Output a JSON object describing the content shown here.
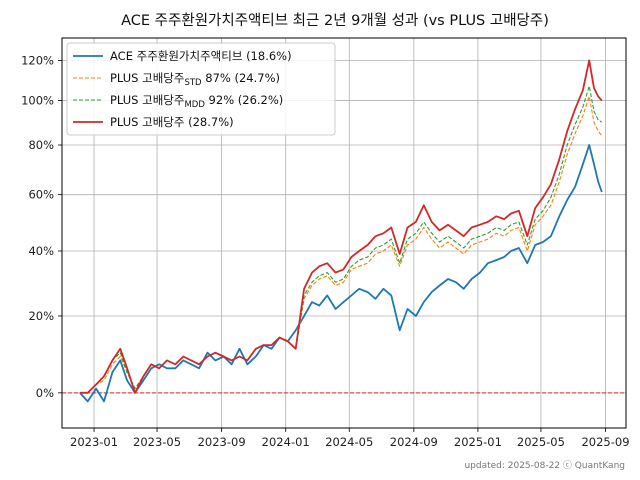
{
  "chart_data": {
    "type": "line",
    "title": "ACE 주주환원가치주액티브 최근 2년 9개월 성과 (vs PLUS 고배당주)",
    "xlabel": "",
    "ylabel": "",
    "y_scale": "log(1+return)",
    "ylim": [
      -8,
      132
    ],
    "xlim": [
      "2022-11-01",
      "2025-10-10"
    ],
    "grid": true,
    "legend_position": "top-left",
    "reference_line": {
      "value": 0,
      "style": "dashed",
      "color": "#d62728"
    },
    "x_ticks": [
      "2023-01",
      "2023-05",
      "2023-09",
      "2024-01",
      "2024-05",
      "2024-09",
      "2025-01",
      "2025-05",
      "2025-09"
    ],
    "y_ticks": [
      "0%",
      "20%",
      "40%",
      "60%",
      "80%",
      "100%",
      "120%"
    ],
    "y_tick_values": [
      0,
      20,
      40,
      60,
      80,
      100,
      120
    ],
    "series": [
      {
        "name": "ACE 주주환원가치주액티브 (18.6%)",
        "name_main": "ACE 주주환원가치주액티브 (18.6%)",
        "name_sub": "",
        "name_tail": "",
        "color": "#1f77b4",
        "style": "solid",
        "points": [
          [
            "2022-12-05",
            0
          ],
          [
            "2022-12-20",
            -2
          ],
          [
            "2023-01-05",
            1
          ],
          [
            "2023-01-20",
            -2
          ],
          [
            "2023-02-05",
            5
          ],
          [
            "2023-02-20",
            8
          ],
          [
            "2023-03-05",
            3
          ],
          [
            "2023-03-20",
            0
          ],
          [
            "2023-04-05",
            3
          ],
          [
            "2023-04-20",
            6
          ],
          [
            "2023-05-05",
            7
          ],
          [
            "2023-05-20",
            6
          ],
          [
            "2023-06-05",
            6
          ],
          [
            "2023-06-20",
            8
          ],
          [
            "2023-07-05",
            7
          ],
          [
            "2023-07-20",
            6
          ],
          [
            "2023-08-05",
            10
          ],
          [
            "2023-08-20",
            8
          ],
          [
            "2023-09-05",
            9
          ],
          [
            "2023-09-20",
            7
          ],
          [
            "2023-10-05",
            11
          ],
          [
            "2023-10-20",
            7
          ],
          [
            "2023-11-05",
            9
          ],
          [
            "2023-11-20",
            12
          ],
          [
            "2023-12-05",
            11
          ],
          [
            "2023-12-20",
            14
          ],
          [
            "2024-01-05",
            13
          ],
          [
            "2024-01-20",
            16
          ],
          [
            "2024-02-05",
            20
          ],
          [
            "2024-02-20",
            24
          ],
          [
            "2024-03-05",
            23
          ],
          [
            "2024-03-20",
            26
          ],
          [
            "2024-04-05",
            22
          ],
          [
            "2024-04-20",
            24
          ],
          [
            "2024-05-05",
            26
          ],
          [
            "2024-05-20",
            28
          ],
          [
            "2024-06-05",
            27
          ],
          [
            "2024-06-20",
            25
          ],
          [
            "2024-07-05",
            28
          ],
          [
            "2024-07-20",
            26
          ],
          [
            "2024-08-05",
            16
          ],
          [
            "2024-08-20",
            22
          ],
          [
            "2024-09-05",
            20
          ],
          [
            "2024-09-20",
            24
          ],
          [
            "2024-10-05",
            27
          ],
          [
            "2024-10-20",
            29
          ],
          [
            "2024-11-05",
            31
          ],
          [
            "2024-11-20",
            30
          ],
          [
            "2024-12-05",
            28
          ],
          [
            "2024-12-20",
            31
          ],
          [
            "2025-01-05",
            33
          ],
          [
            "2025-01-20",
            36
          ],
          [
            "2025-02-05",
            37
          ],
          [
            "2025-02-20",
            38
          ],
          [
            "2025-03-05",
            40
          ],
          [
            "2025-03-20",
            41
          ],
          [
            "2025-04-05",
            36
          ],
          [
            "2025-04-20",
            42
          ],
          [
            "2025-05-05",
            43
          ],
          [
            "2025-05-20",
            45
          ],
          [
            "2025-06-05",
            52
          ],
          [
            "2025-06-20",
            58
          ],
          [
            "2025-07-05",
            63
          ],
          [
            "2025-07-20",
            72
          ],
          [
            "2025-08-01",
            80
          ],
          [
            "2025-08-10",
            72
          ],
          [
            "2025-08-18",
            65
          ],
          [
            "2025-08-25",
            61
          ]
        ]
      },
      {
        "name": "PLUS 고배당주STD 87% (24.7%)",
        "name_main": "PLUS 고배당주",
        "name_sub": "STD",
        "name_tail": " 87% (24.7%)",
        "color": "#ff7f0e",
        "style": "dashed",
        "points": [
          [
            "2022-12-05",
            0
          ],
          [
            "2022-12-20",
            0
          ],
          [
            "2023-01-05",
            2
          ],
          [
            "2023-01-20",
            3
          ],
          [
            "2023-02-05",
            7
          ],
          [
            "2023-02-20",
            9
          ],
          [
            "2023-03-05",
            5
          ],
          [
            "2023-03-20",
            1
          ],
          [
            "2023-04-05",
            4
          ],
          [
            "2023-04-20",
            7
          ],
          [
            "2023-05-05",
            6
          ],
          [
            "2023-05-20",
            8
          ],
          [
            "2023-06-05",
            7
          ],
          [
            "2023-06-20",
            9
          ],
          [
            "2023-07-05",
            8
          ],
          [
            "2023-07-20",
            7
          ],
          [
            "2023-08-05",
            9
          ],
          [
            "2023-08-20",
            10
          ],
          [
            "2023-09-05",
            9
          ],
          [
            "2023-09-20",
            8
          ],
          [
            "2023-10-05",
            9
          ],
          [
            "2023-10-20",
            8
          ],
          [
            "2023-11-05",
            11
          ],
          [
            "2023-11-20",
            12
          ],
          [
            "2023-12-05",
            12
          ],
          [
            "2023-12-20",
            14
          ],
          [
            "2024-01-05",
            13
          ],
          [
            "2024-01-20",
            11
          ],
          [
            "2024-02-05",
            25
          ],
          [
            "2024-02-20",
            29
          ],
          [
            "2024-03-05",
            31
          ],
          [
            "2024-03-20",
            32
          ],
          [
            "2024-04-05",
            29
          ],
          [
            "2024-04-20",
            30
          ],
          [
            "2024-05-05",
            34
          ],
          [
            "2024-05-20",
            35
          ],
          [
            "2024-06-05",
            36
          ],
          [
            "2024-06-20",
            39
          ],
          [
            "2024-07-05",
            40
          ],
          [
            "2024-07-20",
            42
          ],
          [
            "2024-08-05",
            35
          ],
          [
            "2024-08-20",
            42
          ],
          [
            "2024-09-05",
            44
          ],
          [
            "2024-09-20",
            48
          ],
          [
            "2024-10-05",
            44
          ],
          [
            "2024-10-20",
            41
          ],
          [
            "2024-11-05",
            43
          ],
          [
            "2024-11-20",
            41
          ],
          [
            "2024-12-05",
            39
          ],
          [
            "2024-12-20",
            42
          ],
          [
            "2025-01-05",
            43
          ],
          [
            "2025-01-20",
            44
          ],
          [
            "2025-02-05",
            46
          ],
          [
            "2025-02-20",
            45
          ],
          [
            "2025-03-05",
            47
          ],
          [
            "2025-03-20",
            48
          ],
          [
            "2025-04-05",
            40
          ],
          [
            "2025-04-20",
            49
          ],
          [
            "2025-05-05",
            52
          ],
          [
            "2025-05-20",
            56
          ],
          [
            "2025-06-05",
            65
          ],
          [
            "2025-06-20",
            76
          ],
          [
            "2025-07-05",
            85
          ],
          [
            "2025-07-20",
            93
          ],
          [
            "2025-08-01",
            102
          ],
          [
            "2025-08-10",
            90
          ],
          [
            "2025-08-18",
            86
          ],
          [
            "2025-08-25",
            84
          ]
        ]
      },
      {
        "name": "PLUS 고배당주MDD 92% (26.2%)",
        "name_main": "PLUS 고배당주",
        "name_sub": "MDD",
        "name_tail": " 92% (26.2%)",
        "color": "#2ca02c",
        "style": "dashed",
        "points": [
          [
            "2022-12-05",
            0
          ],
          [
            "2022-12-20",
            0
          ],
          [
            "2023-01-05",
            2
          ],
          [
            "2023-01-20",
            4
          ],
          [
            "2023-02-05",
            8
          ],
          [
            "2023-02-20",
            10
          ],
          [
            "2023-03-05",
            5
          ],
          [
            "2023-03-20",
            1
          ],
          [
            "2023-04-05",
            4
          ],
          [
            "2023-04-20",
            7
          ],
          [
            "2023-05-05",
            6
          ],
          [
            "2023-05-20",
            8
          ],
          [
            "2023-06-05",
            7
          ],
          [
            "2023-06-20",
            9
          ],
          [
            "2023-07-05",
            8
          ],
          [
            "2023-07-20",
            7
          ],
          [
            "2023-08-05",
            9
          ],
          [
            "2023-08-20",
            10
          ],
          [
            "2023-09-05",
            9
          ],
          [
            "2023-09-20",
            8
          ],
          [
            "2023-10-05",
            9
          ],
          [
            "2023-10-20",
            8
          ],
          [
            "2023-11-05",
            11
          ],
          [
            "2023-11-20",
            12
          ],
          [
            "2023-12-05",
            12
          ],
          [
            "2023-12-20",
            14
          ],
          [
            "2024-01-05",
            13
          ],
          [
            "2024-01-20",
            11
          ],
          [
            "2024-02-05",
            26
          ],
          [
            "2024-02-20",
            30
          ],
          [
            "2024-03-05",
            32
          ],
          [
            "2024-03-20",
            33
          ],
          [
            "2024-04-05",
            30
          ],
          [
            "2024-04-20",
            31
          ],
          [
            "2024-05-05",
            35
          ],
          [
            "2024-05-20",
            37
          ],
          [
            "2024-06-05",
            38
          ],
          [
            "2024-06-20",
            41
          ],
          [
            "2024-07-05",
            42
          ],
          [
            "2024-07-20",
            44
          ],
          [
            "2024-08-05",
            36
          ],
          [
            "2024-08-20",
            44
          ],
          [
            "2024-09-05",
            46
          ],
          [
            "2024-09-20",
            50
          ],
          [
            "2024-10-05",
            46
          ],
          [
            "2024-10-20",
            43
          ],
          [
            "2024-11-05",
            45
          ],
          [
            "2024-11-20",
            43
          ],
          [
            "2024-12-05",
            41
          ],
          [
            "2024-12-20",
            44
          ],
          [
            "2025-01-05",
            45
          ],
          [
            "2025-01-20",
            46
          ],
          [
            "2025-02-05",
            48
          ],
          [
            "2025-02-20",
            47
          ],
          [
            "2025-03-05",
            49
          ],
          [
            "2025-03-20",
            50
          ],
          [
            "2025-04-05",
            42
          ],
          [
            "2025-04-20",
            51
          ],
          [
            "2025-05-05",
            54
          ],
          [
            "2025-05-20",
            59
          ],
          [
            "2025-06-05",
            68
          ],
          [
            "2025-06-20",
            80
          ],
          [
            "2025-07-05",
            89
          ],
          [
            "2025-07-20",
            97
          ],
          [
            "2025-08-01",
            107
          ],
          [
            "2025-08-10",
            95
          ],
          [
            "2025-08-18",
            91
          ],
          [
            "2025-08-25",
            90
          ]
        ]
      },
      {
        "name": "PLUS 고배당주 (28.7%)",
        "name_main": "PLUS 고배당주 (28.7%)",
        "name_sub": "",
        "name_tail": "",
        "color": "#d62728",
        "style": "solid",
        "points": [
          [
            "2022-12-05",
            0
          ],
          [
            "2022-12-20",
            0
          ],
          [
            "2023-01-05",
            2
          ],
          [
            "2023-01-20",
            4
          ],
          [
            "2023-02-05",
            8
          ],
          [
            "2023-02-20",
            11
          ],
          [
            "2023-03-05",
            6
          ],
          [
            "2023-03-20",
            0
          ],
          [
            "2023-04-05",
            4
          ],
          [
            "2023-04-20",
            7
          ],
          [
            "2023-05-05",
            6
          ],
          [
            "2023-05-20",
            8
          ],
          [
            "2023-06-05",
            7
          ],
          [
            "2023-06-20",
            9
          ],
          [
            "2023-07-05",
            8
          ],
          [
            "2023-07-20",
            7
          ],
          [
            "2023-08-05",
            9
          ],
          [
            "2023-08-20",
            10
          ],
          [
            "2023-09-05",
            9
          ],
          [
            "2023-09-20",
            8
          ],
          [
            "2023-10-05",
            9
          ],
          [
            "2023-10-20",
            8
          ],
          [
            "2023-11-05",
            11
          ],
          [
            "2023-11-20",
            12
          ],
          [
            "2023-12-05",
            12
          ],
          [
            "2023-12-20",
            14
          ],
          [
            "2024-01-05",
            13
          ],
          [
            "2024-01-20",
            11
          ],
          [
            "2024-02-05",
            28
          ],
          [
            "2024-02-20",
            33
          ],
          [
            "2024-03-05",
            35
          ],
          [
            "2024-03-20",
            36
          ],
          [
            "2024-04-05",
            33
          ],
          [
            "2024-04-20",
            34
          ],
          [
            "2024-05-05",
            38
          ],
          [
            "2024-05-20",
            40
          ],
          [
            "2024-06-05",
            42
          ],
          [
            "2024-06-20",
            45
          ],
          [
            "2024-07-05",
            46
          ],
          [
            "2024-07-20",
            48
          ],
          [
            "2024-08-05",
            39
          ],
          [
            "2024-08-20",
            48
          ],
          [
            "2024-09-05",
            50
          ],
          [
            "2024-09-20",
            56
          ],
          [
            "2024-10-05",
            50
          ],
          [
            "2024-10-20",
            47
          ],
          [
            "2024-11-05",
            49
          ],
          [
            "2024-11-20",
            47
          ],
          [
            "2024-12-05",
            45
          ],
          [
            "2024-12-20",
            48
          ],
          [
            "2025-01-05",
            49
          ],
          [
            "2025-01-20",
            50
          ],
          [
            "2025-02-05",
            52
          ],
          [
            "2025-02-20",
            51
          ],
          [
            "2025-03-05",
            53
          ],
          [
            "2025-03-20",
            54
          ],
          [
            "2025-04-05",
            45
          ],
          [
            "2025-04-20",
            55
          ],
          [
            "2025-05-05",
            59
          ],
          [
            "2025-05-20",
            64
          ],
          [
            "2025-06-05",
            74
          ],
          [
            "2025-06-20",
            86
          ],
          [
            "2025-07-05",
            96
          ],
          [
            "2025-07-20",
            105
          ],
          [
            "2025-08-01",
            120
          ],
          [
            "2025-08-10",
            106
          ],
          [
            "2025-08-18",
            102
          ],
          [
            "2025-08-25",
            100
          ]
        ]
      }
    ]
  },
  "footer": "updated: 2025-08-22 ⓒ QuantKang"
}
